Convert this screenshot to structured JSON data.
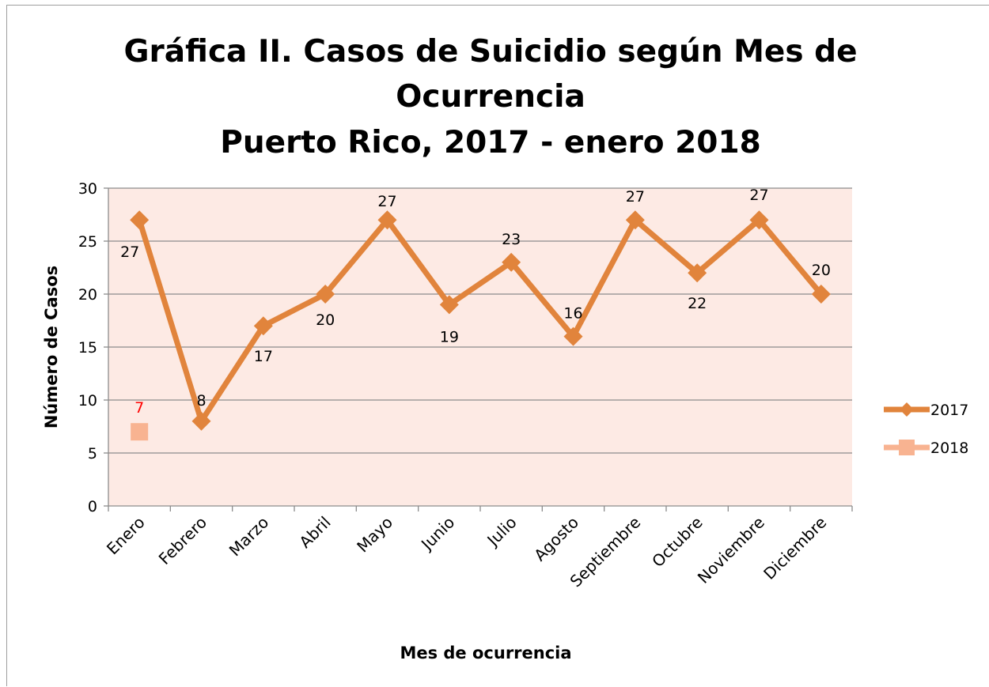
{
  "chart_data": {
    "type": "line",
    "title_lines": [
      "Gráfica II. Casos de Suicidio según Mes de",
      "Ocurrencia",
      "Puerto Rico, 2017 - enero 2018"
    ],
    "xlabel": "Mes de ocurrencia",
    "ylabel": "Número de Casos",
    "categories": [
      "Enero",
      "Febrero",
      "Marzo",
      "Abril",
      "Mayo",
      "Junio",
      "Julio",
      "Agosto",
      "Septiembre",
      "Octubre",
      "Noviembre",
      "Diciembre"
    ],
    "ylim": [
      0,
      30
    ],
    "yticks": [
      0,
      5,
      10,
      15,
      20,
      25,
      30
    ],
    "grid": true,
    "legend_position": "right",
    "plot_background": "#fdeae4",
    "series": [
      {
        "name": "2017",
        "values": [
          27,
          8,
          17,
          20,
          27,
          19,
          23,
          16,
          27,
          22,
          27,
          20
        ],
        "color": "#e1843c",
        "marker": "diamond",
        "label_color": "#000000"
      },
      {
        "name": "2018",
        "values": [
          7,
          null,
          null,
          null,
          null,
          null,
          null,
          null,
          null,
          null,
          null,
          null
        ],
        "color": "#f8b391",
        "marker": "square",
        "label_color": "#ff0000"
      }
    ]
  }
}
